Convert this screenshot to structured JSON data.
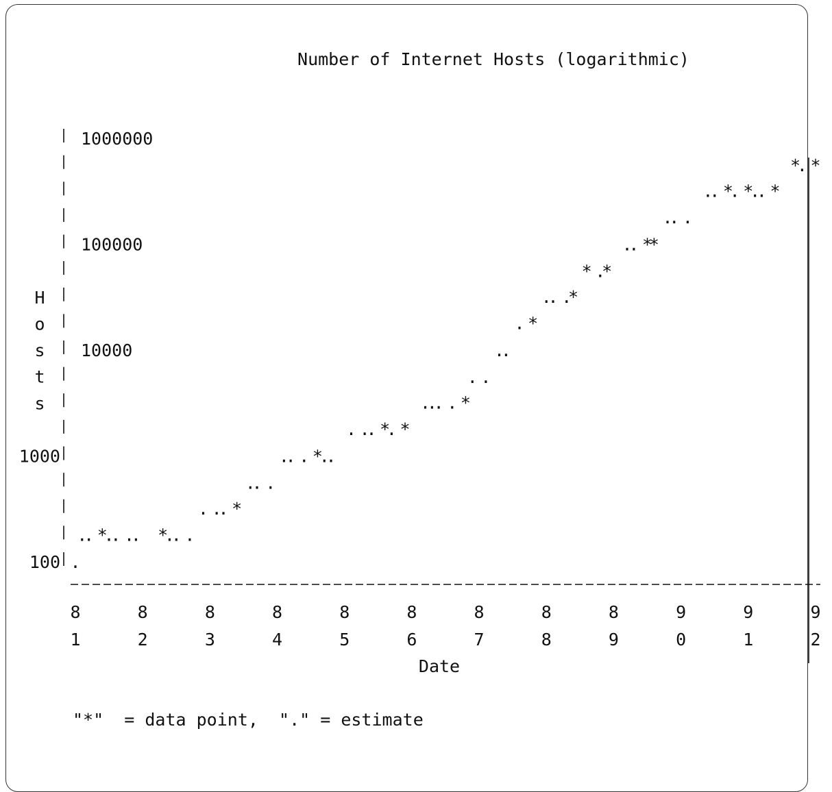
{
  "chart_data": {
    "type": "scatter",
    "title": "Number of Internet Hosts (logarithmic)",
    "xlabel": "Date",
    "ylabel": "Hosts",
    "y_scale": "log",
    "ylim": [
      100,
      1000000
    ],
    "yticks": [
      {
        "value": 1000000,
        "label": "1000000"
      },
      {
        "value": 100000,
        "label": "100000"
      },
      {
        "value": 10000,
        "label": "10000"
      },
      {
        "value": 1000,
        "label": "1000"
      },
      {
        "value": 100,
        "label": "100"
      }
    ],
    "xticks": [
      {
        "value": 81,
        "label": "81"
      },
      {
        "value": 82,
        "label": "82"
      },
      {
        "value": 83,
        "label": "83"
      },
      {
        "value": 84,
        "label": "84"
      },
      {
        "value": 85,
        "label": "85"
      },
      {
        "value": 86,
        "label": "86"
      },
      {
        "value": 87,
        "label": "87"
      },
      {
        "value": 88,
        "label": "88"
      },
      {
        "value": 89,
        "label": "89"
      },
      {
        "value": 90,
        "label": "90"
      },
      {
        "value": 91,
        "label": "91"
      },
      {
        "value": 92,
        "label": "92"
      }
    ],
    "xlim": [
      81,
      92
    ],
    "legend_text": "\"*\"  = data point,  \".\" = estimate",
    "marks": [
      {
        "x": 81.0,
        "y": 100,
        "kind": "estimate"
      },
      {
        "x": 81.1,
        "y": 180,
        "kind": "estimate"
      },
      {
        "x": 81.2,
        "y": 180,
        "kind": "estimate"
      },
      {
        "x": 81.4,
        "y": 180,
        "kind": "data"
      },
      {
        "x": 81.5,
        "y": 180,
        "kind": "estimate"
      },
      {
        "x": 81.6,
        "y": 180,
        "kind": "estimate"
      },
      {
        "x": 81.8,
        "y": 180,
        "kind": "estimate"
      },
      {
        "x": 81.9,
        "y": 180,
        "kind": "estimate"
      },
      {
        "x": 82.3,
        "y": 180,
        "kind": "data"
      },
      {
        "x": 82.4,
        "y": 180,
        "kind": "estimate"
      },
      {
        "x": 82.5,
        "y": 180,
        "kind": "estimate"
      },
      {
        "x": 82.7,
        "y": 180,
        "kind": "estimate"
      },
      {
        "x": 82.9,
        "y": 320,
        "kind": "estimate"
      },
      {
        "x": 83.1,
        "y": 320,
        "kind": "estimate"
      },
      {
        "x": 83.2,
        "y": 320,
        "kind": "estimate"
      },
      {
        "x": 83.4,
        "y": 320,
        "kind": "data"
      },
      {
        "x": 83.6,
        "y": 560,
        "kind": "estimate"
      },
      {
        "x": 83.7,
        "y": 560,
        "kind": "estimate"
      },
      {
        "x": 83.9,
        "y": 560,
        "kind": "estimate"
      },
      {
        "x": 84.1,
        "y": 1000,
        "kind": "estimate"
      },
      {
        "x": 84.2,
        "y": 1000,
        "kind": "estimate"
      },
      {
        "x": 84.4,
        "y": 1000,
        "kind": "estimate"
      },
      {
        "x": 84.6,
        "y": 1000,
        "kind": "data"
      },
      {
        "x": 84.7,
        "y": 1000,
        "kind": "estimate"
      },
      {
        "x": 84.8,
        "y": 1000,
        "kind": "estimate"
      },
      {
        "x": 85.1,
        "y": 1800,
        "kind": "estimate"
      },
      {
        "x": 85.3,
        "y": 1800,
        "kind": "estimate"
      },
      {
        "x": 85.4,
        "y": 1800,
        "kind": "estimate"
      },
      {
        "x": 85.6,
        "y": 1800,
        "kind": "data"
      },
      {
        "x": 85.7,
        "y": 1800,
        "kind": "estimate"
      },
      {
        "x": 85.9,
        "y": 1800,
        "kind": "data"
      },
      {
        "x": 86.2,
        "y": 3200,
        "kind": "estimate"
      },
      {
        "x": 86.3,
        "y": 3200,
        "kind": "estimate"
      },
      {
        "x": 86.4,
        "y": 3200,
        "kind": "estimate"
      },
      {
        "x": 86.6,
        "y": 3200,
        "kind": "estimate"
      },
      {
        "x": 86.8,
        "y": 3200,
        "kind": "data"
      },
      {
        "x": 86.9,
        "y": 5600,
        "kind": "estimate"
      },
      {
        "x": 87.1,
        "y": 5600,
        "kind": "estimate"
      },
      {
        "x": 87.3,
        "y": 10000,
        "kind": "estimate"
      },
      {
        "x": 87.4,
        "y": 10000,
        "kind": "estimate"
      },
      {
        "x": 87.6,
        "y": 18000,
        "kind": "estimate"
      },
      {
        "x": 87.8,
        "y": 18000,
        "kind": "data"
      },
      {
        "x": 88.0,
        "y": 32000,
        "kind": "estimate"
      },
      {
        "x": 88.1,
        "y": 32000,
        "kind": "estimate"
      },
      {
        "x": 88.3,
        "y": 32000,
        "kind": "estimate"
      },
      {
        "x": 88.4,
        "y": 32000,
        "kind": "data"
      },
      {
        "x": 88.6,
        "y": 56000,
        "kind": "data"
      },
      {
        "x": 88.8,
        "y": 56000,
        "kind": "estimate"
      },
      {
        "x": 88.9,
        "y": 56000,
        "kind": "data"
      },
      {
        "x": 89.2,
        "y": 100000,
        "kind": "estimate"
      },
      {
        "x": 89.3,
        "y": 100000,
        "kind": "estimate"
      },
      {
        "x": 89.5,
        "y": 100000,
        "kind": "data"
      },
      {
        "x": 89.6,
        "y": 100000,
        "kind": "data"
      },
      {
        "x": 89.8,
        "y": 180000,
        "kind": "estimate"
      },
      {
        "x": 89.9,
        "y": 180000,
        "kind": "estimate"
      },
      {
        "x": 90.1,
        "y": 180000,
        "kind": "estimate"
      },
      {
        "x": 90.4,
        "y": 320000,
        "kind": "estimate"
      },
      {
        "x": 90.5,
        "y": 320000,
        "kind": "estimate"
      },
      {
        "x": 90.7,
        "y": 320000,
        "kind": "data"
      },
      {
        "x": 90.8,
        "y": 320000,
        "kind": "estimate"
      },
      {
        "x": 91.0,
        "y": 320000,
        "kind": "data"
      },
      {
        "x": 91.1,
        "y": 320000,
        "kind": "estimate"
      },
      {
        "x": 91.2,
        "y": 320000,
        "kind": "estimate"
      },
      {
        "x": 91.4,
        "y": 320000,
        "kind": "data"
      },
      {
        "x": 91.7,
        "y": 560000,
        "kind": "data"
      },
      {
        "x": 91.8,
        "y": 560000,
        "kind": "estimate"
      },
      {
        "x": 92.0,
        "y": 560000,
        "kind": "data"
      }
    ]
  }
}
